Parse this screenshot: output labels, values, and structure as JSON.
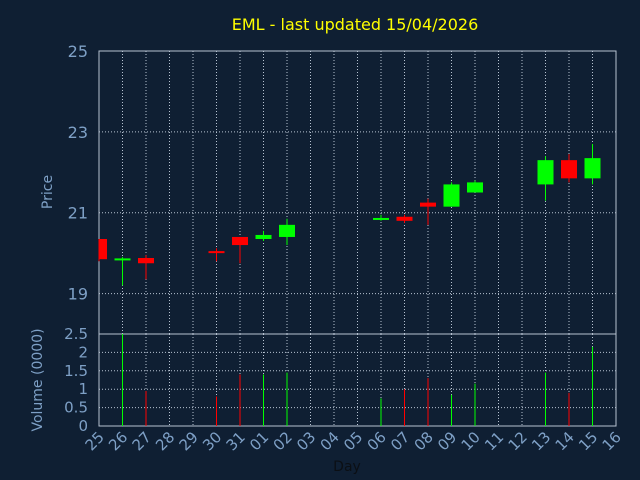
{
  "colors": {
    "background": "#0f1f33",
    "grid": "#b7c3d2",
    "axis_text": "#7ea0c6",
    "title": "#ffff00",
    "up": "#00ff00",
    "down": "#ff0000"
  },
  "chart_data": {
    "type": "candlestick",
    "title": "EML - last updated 15/04/2026",
    "xlabel": "Day",
    "price_panel": {
      "ylabel": "Price",
      "ylim": [
        18,
        25
      ],
      "y_ticks": [
        19,
        21,
        23,
        25
      ]
    },
    "volume_panel": {
      "ylabel": "Volume (0000)",
      "ylim": [
        0,
        2.5
      ],
      "y_ticks": [
        "0",
        "0.5",
        "1",
        "1.5",
        "2",
        "2.5"
      ]
    },
    "x_ticks": [
      "25",
      "26",
      "27",
      "28",
      "29",
      "30",
      "31",
      "01",
      "02",
      "03",
      "04",
      "05",
      "06",
      "07",
      "08",
      "09",
      "10",
      "11",
      "12",
      "13",
      "14",
      "15",
      "16"
    ],
    "candles": [
      {
        "x": 0,
        "open": 20.35,
        "high": 20.35,
        "low": 19.8,
        "close": 19.85,
        "volume": 0
      },
      {
        "x": 1,
        "open": 19.83,
        "high": 19.9,
        "low": 19.2,
        "close": 19.87,
        "volume": 2.5
      },
      {
        "x": 2,
        "open": 19.88,
        "high": 19.95,
        "low": 19.35,
        "close": 19.75,
        "volume": 0.95
      },
      {
        "x": 5,
        "open": 20.05,
        "high": 20.12,
        "low": 19.8,
        "close": 20.02,
        "volume": 0.8
      },
      {
        "x": 6,
        "open": 20.4,
        "high": 20.4,
        "low": 19.75,
        "close": 20.2,
        "volume": 1.4
      },
      {
        "x": 7,
        "open": 20.35,
        "high": 20.55,
        "low": 20.3,
        "close": 20.45,
        "volume": 1.4
      },
      {
        "x": 8,
        "open": 20.4,
        "high": 20.85,
        "low": 20.2,
        "close": 20.7,
        "volume": 1.45
      },
      {
        "x": 12,
        "open": 20.83,
        "high": 20.95,
        "low": 20.8,
        "close": 20.87,
        "volume": 0.75
      },
      {
        "x": 13,
        "open": 20.9,
        "high": 20.95,
        "low": 20.75,
        "close": 20.8,
        "volume": 1.0
      },
      {
        "x": 14,
        "open": 21.25,
        "high": 21.35,
        "low": 20.7,
        "close": 21.15,
        "volume": 1.3
      },
      {
        "x": 15,
        "open": 21.15,
        "high": 21.75,
        "low": 21.15,
        "close": 21.7,
        "volume": 0.85
      },
      {
        "x": 16,
        "open": 21.5,
        "high": 21.8,
        "low": 21.5,
        "close": 21.75,
        "volume": 1.15
      },
      {
        "x": 19,
        "open": 21.7,
        "high": 22.4,
        "low": 21.3,
        "close": 22.3,
        "volume": 1.45
      },
      {
        "x": 20,
        "open": 22.3,
        "high": 22.45,
        "low": 21.75,
        "close": 21.85,
        "volume": 0.9
      },
      {
        "x": 21,
        "open": 21.85,
        "high": 22.7,
        "low": 21.7,
        "close": 22.35,
        "volume": 2.15
      }
    ],
    "grid": true
  }
}
